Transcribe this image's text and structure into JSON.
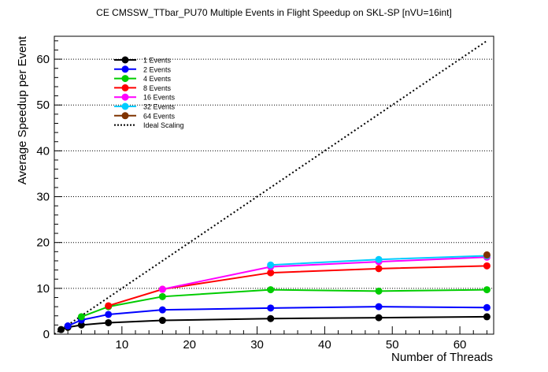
{
  "chart_data": {
    "type": "line",
    "title": "CE CMSSW_TTbar_PU70 Multiple Events in Flight Speedup on SKL-SP [nVU=16int]",
    "xlabel": "Number of Threads",
    "ylabel": "Average Speedup per Event",
    "xlim": [
      0,
      65
    ],
    "ylim": [
      0,
      65
    ],
    "xticks": [
      10,
      20,
      30,
      40,
      50,
      60
    ],
    "yticks": [
      0,
      10,
      20,
      30,
      40,
      50,
      60
    ],
    "grid": "horizontal dotted",
    "legend_position": "top-left",
    "series": [
      {
        "name": "1 Events",
        "color": "#000000",
        "x": [
          1,
          2,
          4,
          8,
          16,
          32,
          48,
          64
        ],
        "y": [
          1.0,
          1.5,
          2.0,
          2.5,
          3.0,
          3.4,
          3.6,
          3.8
        ]
      },
      {
        "name": "2 Events",
        "color": "#0000ff",
        "x": [
          2,
          4,
          8,
          16,
          32,
          48,
          64
        ],
        "y": [
          1.8,
          3.1,
          4.3,
          5.3,
          5.7,
          6.0,
          5.8
        ]
      },
      {
        "name": "4 Events",
        "color": "#00cc00",
        "x": [
          4,
          8,
          16,
          32,
          48,
          64
        ],
        "y": [
          3.8,
          6.0,
          8.2,
          9.7,
          9.4,
          9.7
        ]
      },
      {
        "name": "8 Events",
        "color": "#ff0000",
        "x": [
          8,
          16,
          32,
          48,
          64
        ],
        "y": [
          6.2,
          9.8,
          13.4,
          14.3,
          14.9
        ]
      },
      {
        "name": "16 Events",
        "color": "#ff00ff",
        "x": [
          16,
          32,
          48,
          64
        ],
        "y": [
          9.8,
          14.7,
          15.8,
          16.8
        ]
      },
      {
        "name": "32 Events",
        "color": "#00ccff",
        "x": [
          32,
          48,
          64
        ],
        "y": [
          15.1,
          16.3,
          17.1
        ]
      },
      {
        "name": "64 Events",
        "color": "#7f3300",
        "x": [
          64
        ],
        "y": [
          17.3
        ]
      }
    ],
    "ideal_scaling": {
      "name": "Ideal Scaling",
      "color": "#000000",
      "x": [
        0,
        64
      ],
      "y": [
        0,
        64
      ]
    }
  }
}
